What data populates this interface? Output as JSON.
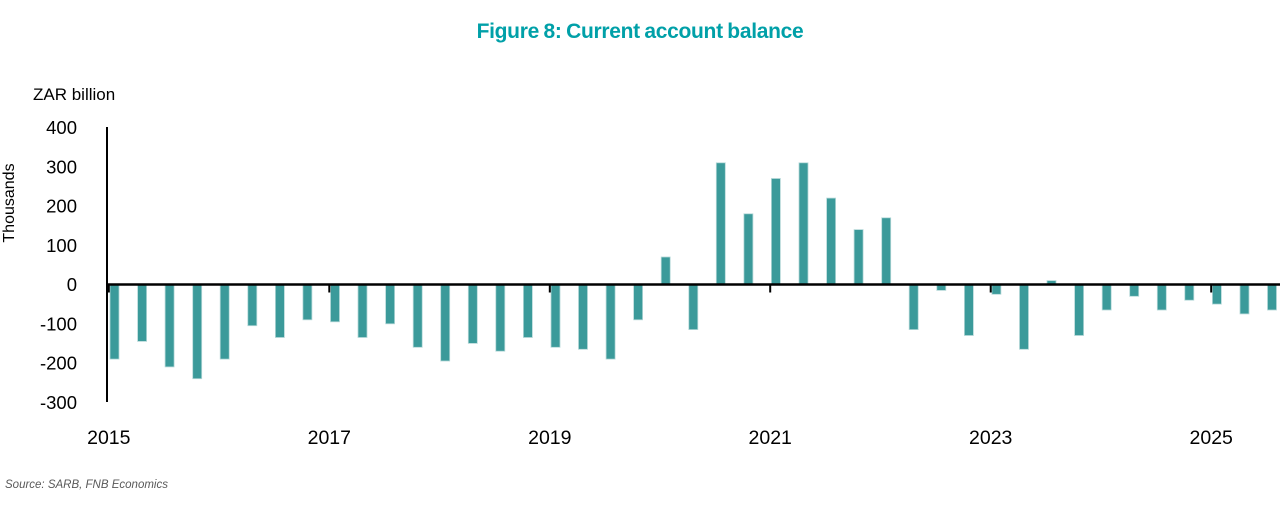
{
  "title": "Figure 8: Current account balance",
  "source": "Source: SARB, FNB Economics",
  "colors": {
    "title": "#00a0a8",
    "bar": "#3b9a9a",
    "bar_edge": "#b5d8d8",
    "axis": "#000000",
    "tick_text": "#000000",
    "source_text": "#595959"
  },
  "y_axis": {
    "unit_label": "ZAR billion",
    "display_units": "Thousands",
    "ticks": [
      400,
      300,
      200,
      100,
      0,
      -100,
      -200,
      -300
    ]
  },
  "x_axis": {
    "years": [
      2015,
      2017,
      2019,
      2021,
      2023,
      2025
    ]
  },
  "chart_data": {
    "type": "bar",
    "title": "Figure 8: Current account balance",
    "xlabel": "",
    "ylabel": "ZAR billion (Thousands)",
    "ylim": [
      -300,
      400
    ],
    "grid": false,
    "legend": false,
    "x": [
      "2015 Q1",
      "2015 Q2",
      "2015 Q3",
      "2015 Q4",
      "2016 Q1",
      "2016 Q2",
      "2016 Q3",
      "2016 Q4",
      "2017 Q1",
      "2017 Q2",
      "2017 Q3",
      "2017 Q4",
      "2018 Q1",
      "2018 Q2",
      "2018 Q3",
      "2018 Q4",
      "2019 Q1",
      "2019 Q2",
      "2019 Q3",
      "2019 Q4",
      "2020 Q1",
      "2020 Q2",
      "2020 Q3",
      "2020 Q4",
      "2021 Q1",
      "2021 Q2",
      "2021 Q3",
      "2021 Q4",
      "2022 Q1",
      "2022 Q2",
      "2022 Q3",
      "2022 Q4",
      "2023 Q1",
      "2023 Q2",
      "2023 Q3",
      "2023 Q4",
      "2024 Q1",
      "2024 Q2",
      "2024 Q3",
      "2024 Q4",
      "2025 Q1",
      "2025 Q2",
      "2025 Q3"
    ],
    "values": [
      -190,
      -145,
      -210,
      -240,
      -190,
      -105,
      -135,
      -90,
      -95,
      -135,
      -100,
      -160,
      -195,
      -150,
      -170,
      -135,
      -160,
      -165,
      -190,
      -90,
      70,
      -115,
      310,
      180,
      270,
      310,
      220,
      140,
      170,
      -115,
      -15,
      -130,
      -25,
      -165,
      10,
      -130,
      -65,
      -30,
      -65,
      -40,
      -50,
      -75,
      -65
    ]
  }
}
